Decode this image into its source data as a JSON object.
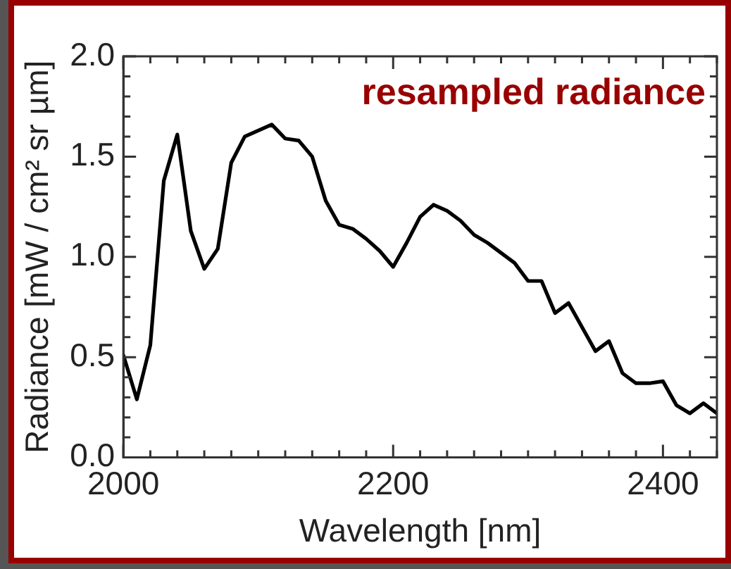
{
  "chart_data": {
    "type": "line",
    "xlabel": "Wavelength [nm]",
    "ylabel": "Radiance [mW / cm² sr µm]",
    "annotations": [
      "resampled radiance"
    ],
    "x": [
      2000,
      2010,
      2020,
      2030,
      2040,
      2050,
      2060,
      2070,
      2080,
      2090,
      2100,
      2110,
      2120,
      2130,
      2140,
      2150,
      2160,
      2170,
      2180,
      2190,
      2200,
      2210,
      2220,
      2230,
      2240,
      2250,
      2260,
      2270,
      2280,
      2290,
      2300,
      2310,
      2320,
      2330,
      2340,
      2350,
      2360,
      2370,
      2380,
      2390,
      2400,
      2410,
      2420,
      2430,
      2440
    ],
    "series": [
      {
        "color": "#000000",
        "values": [
          0.51,
          0.29,
          0.56,
          1.38,
          1.61,
          1.13,
          0.94,
          1.04,
          1.47,
          1.6,
          1.63,
          1.66,
          1.59,
          1.58,
          1.5,
          1.28,
          1.16,
          1.14,
          1.09,
          1.03,
          0.95,
          1.07,
          1.2,
          1.26,
          1.23,
          1.18,
          1.11,
          1.07,
          1.02,
          0.97,
          0.88,
          0.88,
          0.72,
          0.77,
          0.65,
          0.53,
          0.58,
          0.42,
          0.37,
          0.37,
          0.38,
          0.26,
          0.22,
          0.27,
          0.22
        ]
      }
    ],
    "xlim": [
      2000,
      2440
    ],
    "xticks": [
      2000,
      {
        "value": 2020,
        "label": null
      },
      {
        "value": 2040,
        "label": null
      },
      {
        "value": 2060,
        "label": null
      },
      {
        "value": 2080,
        "label": null
      },
      {
        "value": 2100,
        "label": null
      },
      {
        "value": 2120,
        "label": null
      },
      {
        "value": 2140,
        "label": null
      },
      {
        "value": 2160,
        "label": null
      },
      {
        "value": 2180,
        "label": null
      },
      2200,
      {
        "value": 2220,
        "label": null
      },
      {
        "value": 2240,
        "label": null
      },
      {
        "value": 2260,
        "label": null
      },
      {
        "value": 2280,
        "label": null
      },
      {
        "value": 2300,
        "label": null
      },
      {
        "value": 2320,
        "label": null
      },
      {
        "value": 2340,
        "label": null
      },
      {
        "value": 2360,
        "label": null
      },
      {
        "value": 2380,
        "label": null
      },
      2400,
      {
        "value": 2420,
        "label": null
      },
      {
        "value": 2440,
        "label": null
      }
    ],
    "ylim": [
      0,
      2
    ],
    "yticks": [
      {
        "value": 0,
        "label": "0.0"
      },
      {
        "value": 0.1,
        "label": null
      },
      {
        "value": 0.2,
        "label": null
      },
      {
        "value": 0.3,
        "label": null
      },
      {
        "value": 0.4,
        "label": null
      },
      {
        "value": 0.5,
        "label": "0.5"
      },
      {
        "value": 0.6,
        "label": null
      },
      {
        "value": 0.7,
        "label": null
      },
      {
        "value": 0.8,
        "label": null
      },
      {
        "value": 0.9,
        "label": null
      },
      {
        "value": 1,
        "label": "1.0"
      },
      {
        "value": 1.1,
        "label": null
      },
      {
        "value": 1.2,
        "label": null
      },
      {
        "value": 1.3,
        "label": null
      },
      {
        "value": 1.4,
        "label": null
      },
      {
        "value": 1.5,
        "label": "1.5"
      },
      {
        "value": 1.6,
        "label": null
      },
      {
        "value": 1.7,
        "label": null
      },
      {
        "value": 1.8,
        "label": null
      },
      {
        "value": 1.9,
        "label": null
      },
      {
        "value": 2,
        "label": "2.0"
      }
    ],
    "grid": false,
    "legend": false,
    "marker": "none",
    "line_style": "solid"
  }
}
